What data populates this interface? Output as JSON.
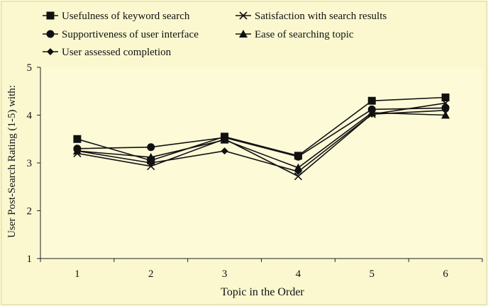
{
  "colors": {
    "background": "#fbf8d0",
    "plot_background": "#fdfad8",
    "axis": "#222222",
    "series": "#111111"
  },
  "chart_data": {
    "type": "line",
    "title": "",
    "xlabel": "Topic in the Order",
    "ylabel": "User Post-Search Rating (1-5) with:",
    "x": [
      1,
      2,
      3,
      4,
      5,
      6
    ],
    "x_ticks": [
      "1",
      "2",
      "3",
      "4",
      "5",
      "6"
    ],
    "y_ticks": [
      "1",
      "2",
      "3",
      "4",
      "5"
    ],
    "ylim": [
      1,
      5
    ],
    "grid": false,
    "legend_position": "top-left",
    "series": [
      {
        "name": "Usefulness of keyword search",
        "marker": "square",
        "values": [
          3.5,
          3.05,
          3.55,
          3.15,
          4.3,
          4.37
        ]
      },
      {
        "name": "Satisfaction with search results",
        "marker": "x",
        "values": [
          3.2,
          2.93,
          3.5,
          2.72,
          4.02,
          4.25
        ]
      },
      {
        "name": "Supportiveness of user interface",
        "marker": "circle",
        "values": [
          3.3,
          3.33,
          3.53,
          3.13,
          4.12,
          4.15
        ]
      },
      {
        "name": "Ease of searching topic",
        "marker": "triangle",
        "values": [
          3.25,
          3.12,
          3.48,
          2.9,
          4.05,
          4.0
        ]
      },
      {
        "name": "User assessed completion",
        "marker": "diamond",
        "values": [
          3.25,
          3.0,
          3.25,
          2.82,
          4.02,
          4.1
        ]
      }
    ]
  }
}
